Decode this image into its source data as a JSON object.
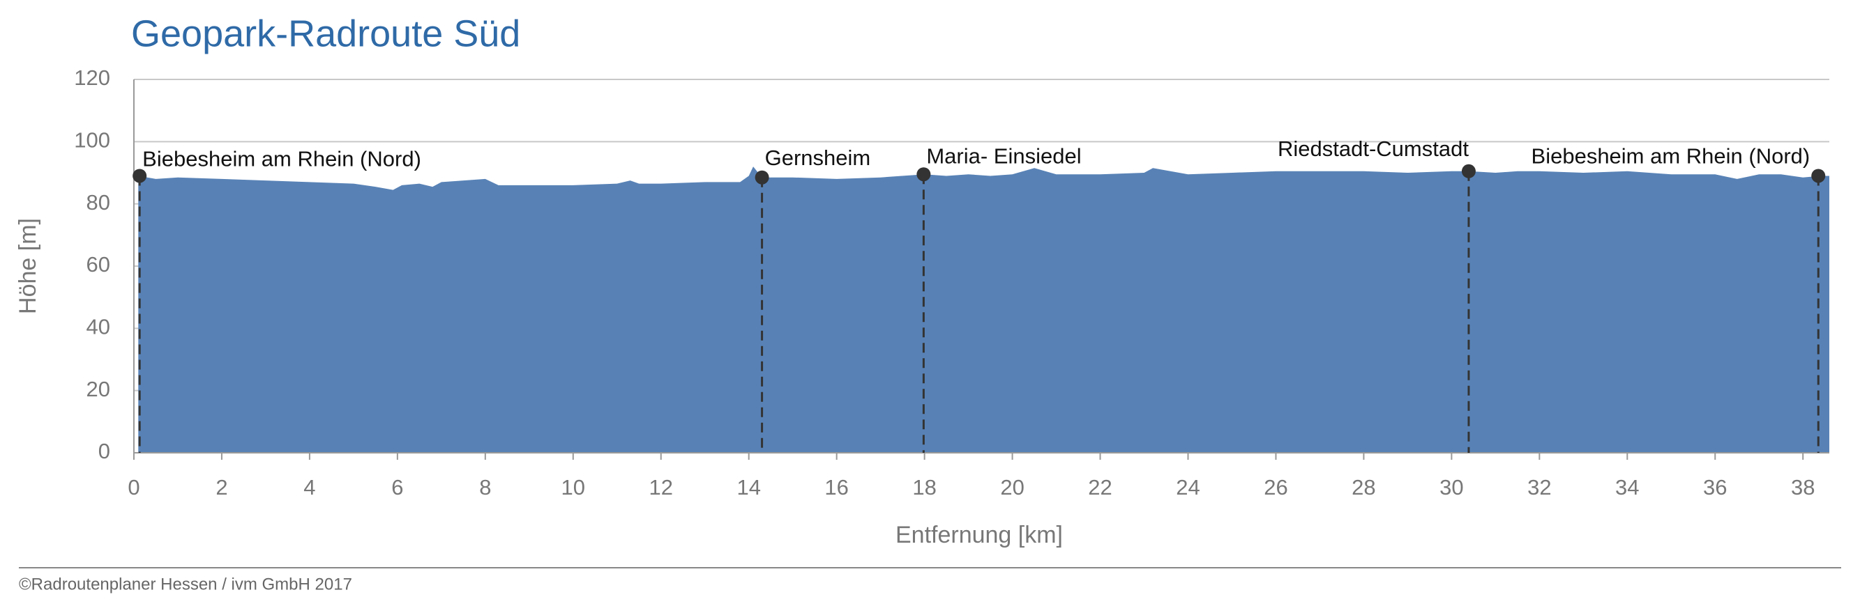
{
  "chart_data": {
    "type": "area",
    "title": "Geopark-Radroute Süd",
    "x_label": "Entfernung [km]",
    "y_label": "Höhe [m]",
    "source": "©Radroutenplaner Hessen / ivm GmbH 2017",
    "x": [
      0.1,
      0.5,
      1,
      2,
      3,
      4,
      5,
      5.5,
      5.9,
      6.1,
      6.5,
      6.8,
      7,
      8,
      8.3,
      9,
      10,
      11,
      11.3,
      11.5,
      12,
      13,
      13.8,
      14,
      14.1,
      14.3,
      15,
      16,
      17,
      18,
      18.5,
      19,
      19.5,
      20,
      20.5,
      21,
      22,
      23,
      23.2,
      24,
      25,
      26,
      27,
      28,
      29,
      30,
      30.4,
      31,
      31.5,
      32,
      33,
      34,
      35,
      36,
      36.5,
      37,
      37.5,
      38,
      38.4,
      38.6
    ],
    "values": [
      89,
      88,
      88.5,
      88,
      87.5,
      87,
      86.5,
      85.5,
      84.5,
      86,
      86.5,
      85.5,
      87,
      88,
      86,
      86,
      86,
      86.5,
      87.5,
      86.5,
      86.5,
      87,
      87,
      89,
      92,
      88.5,
      88.5,
      88,
      88.5,
      89.5,
      89,
      89.5,
      89,
      89.5,
      91.5,
      89.5,
      89.5,
      90,
      91.5,
      89.5,
      90,
      90.5,
      90.5,
      90.5,
      90,
      90.5,
      90.5,
      90,
      90.5,
      90.5,
      90,
      90.5,
      89.5,
      89.5,
      88,
      89.5,
      89.5,
      88.5,
      89,
      89
    ],
    "color": "#5882b6",
    "waypoints": {
      "labels": [
        "Biebesheim am Rhein (Nord)",
        "Gernsheim",
        "Maria- Einsiedel",
        "Riedstadt-Cumstadt",
        "Biebesheim am Rhein (Nord)"
      ],
      "x": [
        0.13,
        14.3,
        17.98,
        30.39,
        38.35
      ],
      "values": [
        89,
        88.5,
        89.5,
        90.5,
        89
      ]
    },
    "xlim": [
      0,
      38.6
    ],
    "ylim": [
      0,
      120
    ],
    "xticks": [
      0,
      2,
      4,
      6,
      8,
      10,
      12,
      14,
      16,
      18,
      20,
      22,
      24,
      26,
      28,
      30,
      32,
      34,
      36,
      38
    ],
    "yticks": [
      0,
      20,
      40,
      60,
      80,
      100,
      120
    ],
    "grid": true
  }
}
